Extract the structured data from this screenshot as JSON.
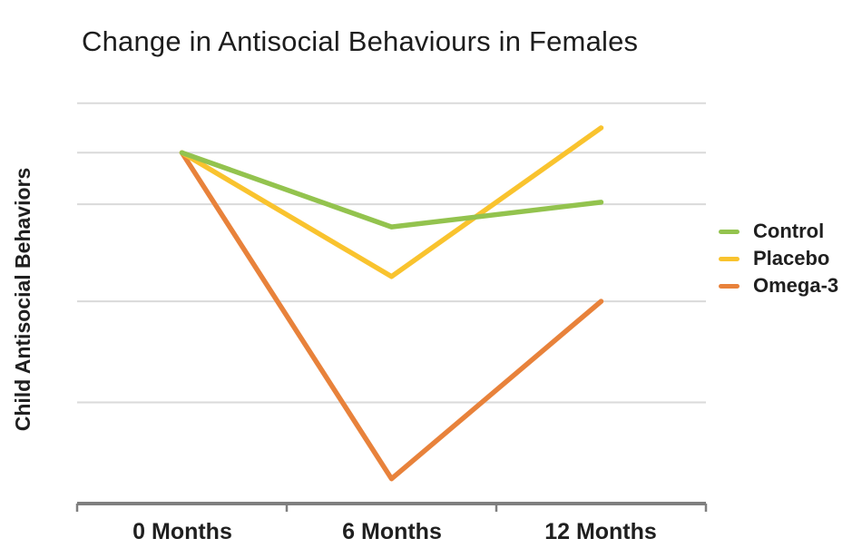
{
  "chart_data": {
    "type": "line",
    "title": "Change in Antisocial Behaviours in Females",
    "ylabel": "Child Antisocial Behaviors",
    "xlabel": "",
    "categories": [
      "0 Months",
      "6 Months",
      "12 Months"
    ],
    "series": [
      {
        "name": "Control",
        "color": "#93C34E",
        "values": [
          85,
          67,
          73
        ]
      },
      {
        "name": "Placebo",
        "color": "#F9C32E",
        "values": [
          85,
          55,
          91
        ]
      },
      {
        "name": "Omega-3",
        "color": "#E8823B",
        "values": [
          85,
          6,
          49
        ]
      }
    ],
    "ylim": [
      0,
      100
    ],
    "y_axis": {
      "tick_labels_visible": false,
      "units": "relative (axis unlabeled)"
    },
    "gridlines_y": [
      97,
      85,
      72.5,
      49,
      24.5
    ],
    "grid": true,
    "legend_position": "right",
    "colors": {
      "gridline": "#DADADA",
      "axis": "#7F7F7F",
      "text": "#1F1F1F",
      "background": "#FFFFFF"
    }
  }
}
